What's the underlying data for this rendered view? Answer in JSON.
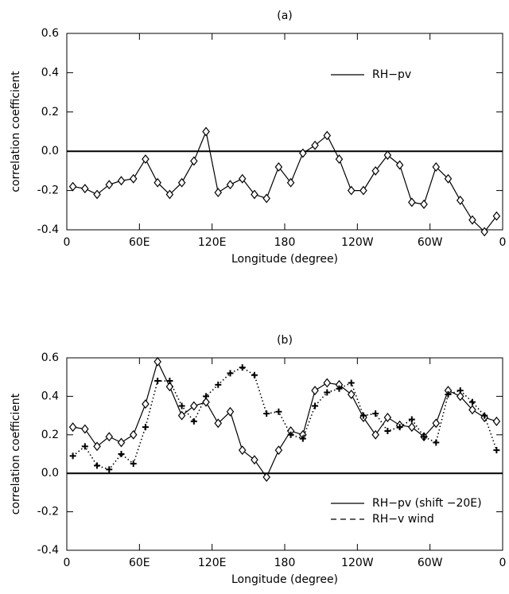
{
  "chart_data": [
    {
      "type": "line",
      "title": "(a)",
      "x_label": "Longitude (degree)",
      "y_label": "correlation coefficient",
      "x": [
        5,
        15,
        25,
        35,
        45,
        55,
        65,
        75,
        85,
        95,
        105,
        115,
        125,
        135,
        145,
        155,
        165,
        175,
        185,
        195,
        205,
        215,
        225,
        235,
        245,
        255,
        265,
        275,
        285,
        295,
        305,
        315,
        325,
        335,
        345,
        355
      ],
      "series": [
        {
          "name": "RH−pv",
          "color": "#000000",
          "marker": "diamond",
          "line_style": "solid",
          "values": [
            -0.18,
            -0.19,
            -0.22,
            -0.17,
            -0.15,
            -0.14,
            -0.04,
            -0.16,
            -0.22,
            -0.16,
            -0.05,
            0.1,
            -0.21,
            -0.17,
            -0.14,
            -0.22,
            -0.24,
            -0.08,
            -0.16,
            -0.01,
            0.03,
            0.08,
            -0.04,
            -0.2,
            -0.2,
            -0.1,
            -0.02,
            -0.07,
            -0.26,
            -0.27,
            -0.08,
            -0.14,
            -0.25,
            -0.35,
            -0.41,
            -0.33
          ]
        }
      ],
      "xlim": [
        0,
        360
      ],
      "xticks": [
        0,
        {
          "value": 60,
          "label": "60E"
        },
        {
          "value": 120,
          "label": "120E"
        },
        180,
        {
          "value": 240,
          "label": "120W"
        },
        {
          "value": 300,
          "label": "60W"
        },
        {
          "value": 360,
          "label": "0"
        }
      ],
      "ylim": [
        -0.4,
        0.6
      ],
      "yticks": [
        -0.4,
        -0.2,
        {
          "value": 0,
          "label": "0.0"
        },
        0.2,
        0.4,
        0.6
      ],
      "reference_line": 0,
      "legend": "upper-right"
    },
    {
      "type": "line",
      "title": "(b)",
      "x_label": "Longitude (degree)",
      "y_label": "correlation coefficient",
      "x": [
        5,
        15,
        25,
        35,
        45,
        55,
        65,
        75,
        85,
        95,
        105,
        115,
        125,
        135,
        145,
        155,
        165,
        175,
        185,
        195,
        205,
        215,
        225,
        235,
        245,
        255,
        265,
        275,
        285,
        295,
        305,
        315,
        325,
        335,
        345,
        355
      ],
      "series": [
        {
          "name": "RH−pv (shift −20E)",
          "color": "#000000",
          "marker": "diamond",
          "line_style": "solid",
          "legend_line_style": "solid",
          "values": [
            0.24,
            0.23,
            0.14,
            0.19,
            0.16,
            0.2,
            0.36,
            0.58,
            0.45,
            0.3,
            0.35,
            0.37,
            0.26,
            0.32,
            0.12,
            0.07,
            -0.02,
            0.12,
            0.22,
            0.2,
            0.43,
            0.47,
            0.46,
            0.41,
            0.29,
            0.2,
            0.29,
            0.25,
            0.24,
            0.19,
            0.26,
            0.43,
            0.4,
            0.33,
            0.29,
            0.27
          ]
        },
        {
          "name": "RH−v wind",
          "color": "#000000",
          "marker": "plus",
          "line_style": "dotted",
          "legend_line_style": "dashed",
          "values": [
            0.09,
            0.14,
            0.04,
            0.02,
            0.1,
            0.05,
            0.24,
            0.48,
            0.48,
            0.35,
            0.27,
            0.4,
            0.46,
            0.52,
            0.55,
            0.51,
            0.31,
            0.32,
            0.2,
            0.18,
            0.35,
            0.42,
            0.44,
            0.47,
            0.3,
            0.31,
            0.22,
            0.24,
            0.28,
            0.19,
            0.16,
            0.41,
            0.43,
            0.37,
            0.3,
            0.12
          ]
        }
      ],
      "xlim": [
        0,
        360
      ],
      "xticks": [
        0,
        {
          "value": 60,
          "label": "60E"
        },
        {
          "value": 120,
          "label": "120E"
        },
        180,
        {
          "value": 240,
          "label": "120W"
        },
        {
          "value": 300,
          "label": "60W"
        },
        {
          "value": 360,
          "label": "0"
        }
      ],
      "ylim": [
        -0.4,
        0.6
      ],
      "yticks": [
        -0.4,
        -0.2,
        {
          "value": 0,
          "label": "0.0"
        },
        0.2,
        0.4,
        0.6
      ],
      "reference_line": 0,
      "legend": "lower-right"
    }
  ]
}
